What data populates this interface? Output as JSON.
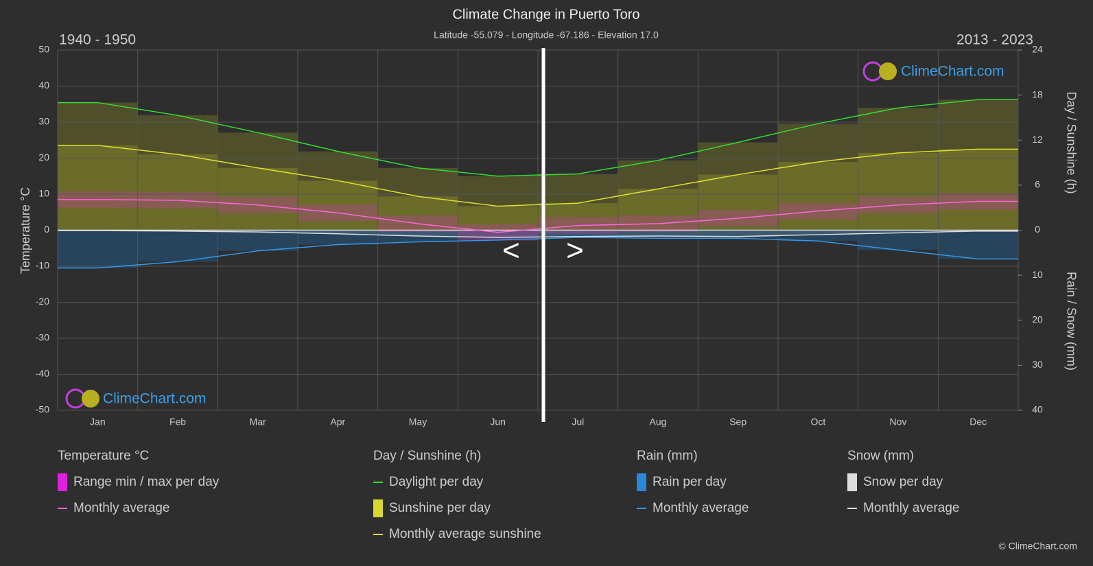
{
  "chart_data": {
    "type": "climate",
    "title": "Climate Change in Puerto Toro",
    "subtitle": "Latitude -55.079 - Longitude -67.186 - Elevation 17.0",
    "period_left": "1940 - 1950",
    "period_right": "2013 - 2023",
    "y_label": "Temperature °C",
    "y2_label": "Day / Sunshine (h)",
    "y3_label": "Rain / Snow (mm)",
    "nav_prev": "<",
    "nav_next": ">",
    "logo": "ClimeChart.com",
    "copyright": "© ClimeChart.com",
    "categories": [
      "Jan",
      "Feb",
      "Mar",
      "Apr",
      "May",
      "Jun",
      "Jul",
      "Aug",
      "Sep",
      "Oct",
      "Nov",
      "Dec"
    ],
    "ylim": [
      -50,
      50
    ],
    "yticks": [
      -50,
      -40,
      -30,
      -20,
      -10,
      0,
      10,
      20,
      30,
      40,
      50
    ],
    "y2lim": [
      -24,
      24
    ],
    "y2ticks": [
      0,
      6,
      12,
      18,
      24
    ],
    "y3lim": [
      40,
      -40
    ],
    "y3ticks": [
      10,
      20,
      30,
      40
    ],
    "grid": true,
    "series": [
      {
        "kind": "line",
        "axis": "y2",
        "color": "#33dd33",
        "values": [
          17.0,
          15.3,
          13.0,
          10.5,
          8.3,
          7.2,
          7.5,
          9.3,
          11.7,
          14.2,
          16.3,
          17.4
        ]
      },
      {
        "kind": "line",
        "axis": "y2",
        "color": "#e0e030",
        "values": [
          11.3,
          10.1,
          8.3,
          6.6,
          4.5,
          3.2,
          3.6,
          5.5,
          7.4,
          9.1,
          10.3,
          10.8
        ]
      },
      {
        "kind": "line",
        "axis": "y",
        "color": "#ff66dd",
        "values": [
          8.5,
          8.3,
          7.0,
          4.8,
          1.8,
          -0.6,
          1.3,
          1.8,
          3.3,
          5.3,
          7.0,
          8.0
        ]
      },
      {
        "kind": "line",
        "axis": "y3",
        "color": "#3399ee",
        "values": [
          8.4,
          7.0,
          4.6,
          3.2,
          2.6,
          2.2,
          1.6,
          1.8,
          1.8,
          2.4,
          4.4,
          6.4
        ]
      },
      {
        "kind": "line",
        "axis": "y3",
        "color": "#dddddd",
        "values": [
          0.1,
          0.2,
          0.4,
          0.8,
          1.3,
          1.6,
          1.4,
          1.3,
          1.4,
          1.0,
          0.6,
          0.2
        ]
      }
    ],
    "legend_groups": [
      {
        "title": "Temperature °C",
        "entries": [
          "Range min / max per day",
          "Monthly average"
        ]
      },
      {
        "title": "Day / Sunshine (h)",
        "entries": [
          "Daylight per day",
          "Sunshine per day",
          "Monthly average sunshine"
        ]
      },
      {
        "title": "Rain (mm)",
        "entries": [
          "Rain per day",
          "Monthly average"
        ]
      },
      {
        "title": "Snow (mm)",
        "entries": [
          "Snow per day",
          "Monthly average"
        ]
      }
    ]
  }
}
